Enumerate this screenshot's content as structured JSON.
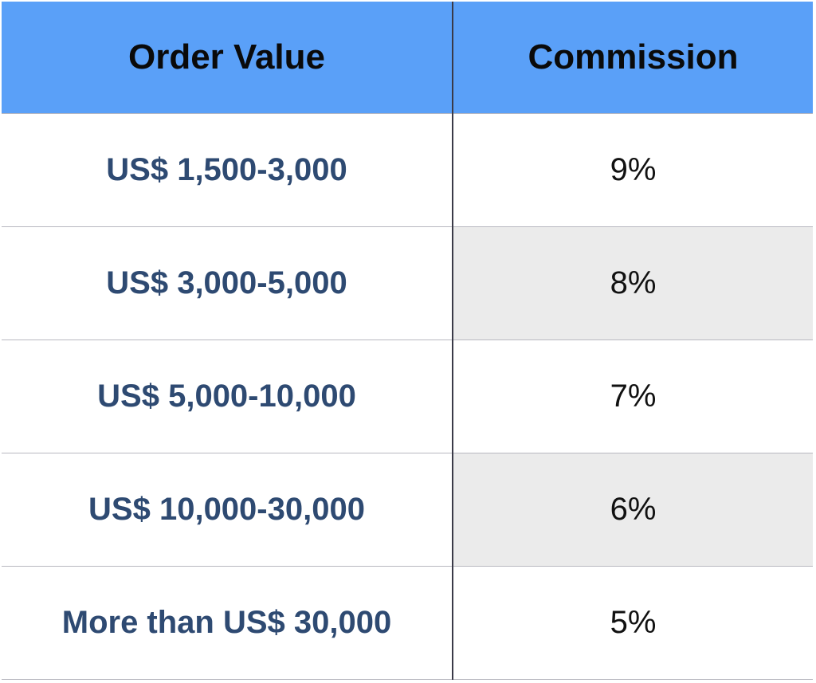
{
  "table": {
    "columns": [
      "Order Value",
      "Commission"
    ],
    "rows": [
      [
        "US$ 1,500-3,000",
        "9%"
      ],
      [
        "US$ 3,000-5,000",
        "8%"
      ],
      [
        "US$ 5,000-10,000",
        "7%"
      ],
      [
        "US$ 10,000-30,000",
        "6%"
      ],
      [
        "More than US$ 30,000",
        "5%"
      ]
    ]
  }
}
